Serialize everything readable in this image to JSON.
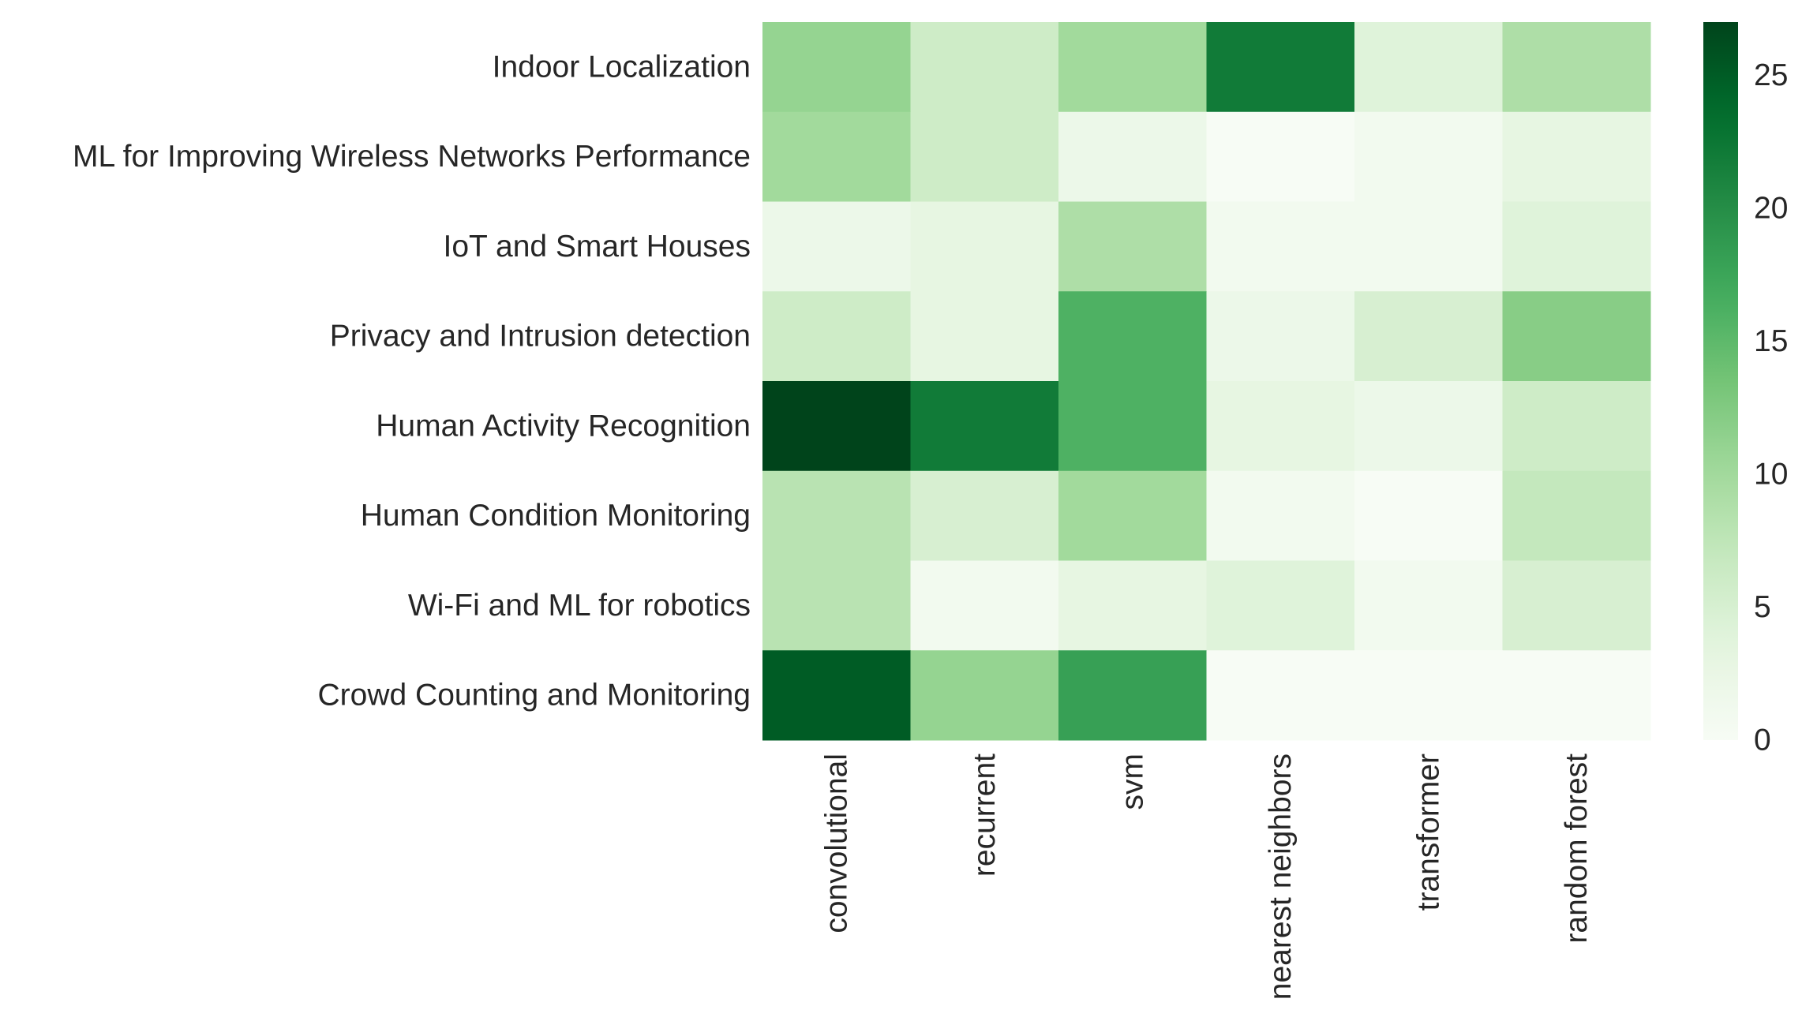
{
  "chart_data": {
    "type": "heatmap",
    "title": "",
    "xlabel": "",
    "ylabel": "",
    "colormap": "Greens",
    "color_low": "#f7fcf5",
    "color_high": "#00441b",
    "rows": [
      "Indoor Localization",
      "ML for Improving Wireless Networks Performance",
      "IoT and Smart Houses",
      "Privacy and Intrusion detection",
      "Human Activity Recognition",
      "Human Condition Monitoring",
      "Wi-Fi and ML for robotics",
      "Crowd Counting and Monitoring"
    ],
    "columns": [
      "convolutional",
      "recurrent",
      "svm",
      "nearest neighbors",
      "transformer",
      "random forest"
    ],
    "values": [
      [
        11,
        6,
        10,
        22,
        4,
        9
      ],
      [
        10,
        6,
        2,
        0,
        1,
        3
      ],
      [
        2,
        3,
        9,
        1,
        1,
        4
      ],
      [
        6,
        3,
        16,
        2,
        5,
        12
      ],
      [
        27,
        22,
        16,
        3,
        2,
        6
      ],
      [
        8,
        5,
        10,
        1,
        0,
        7
      ],
      [
        8,
        1,
        3,
        4,
        1,
        5
      ],
      [
        25,
        11,
        18,
        0,
        0,
        0
      ]
    ],
    "colorbar": {
      "min": 0,
      "max": 27,
      "ticks": [
        0,
        5,
        10,
        15,
        20,
        25
      ]
    }
  }
}
